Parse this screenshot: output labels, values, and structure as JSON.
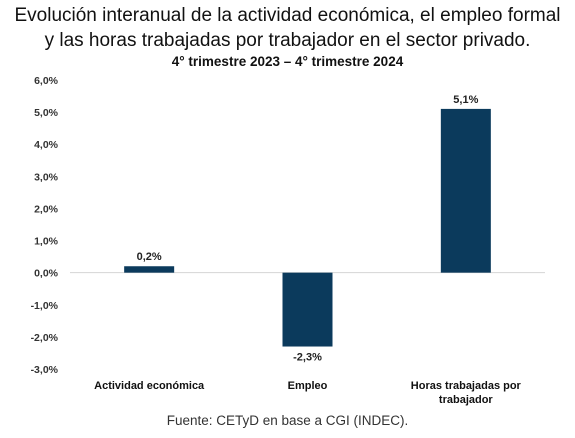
{
  "chart_data": {
    "type": "bar",
    "title": "Evolución interanual de la actividad económica, el empleo formal",
    "title_line2": "y las horas trabajadas por trabajador en el sector privado.",
    "subtitle": "4° trimestre 2023 – 4° trimestre 2024",
    "categories": [
      "Actividad económica",
      "Empleo",
      "Horas trabajadas por trabajador"
    ],
    "category_lines": [
      [
        "Actividad económica"
      ],
      [
        "Empleo"
      ],
      [
        "Horas trabajadas por",
        "trabajador"
      ]
    ],
    "values": [
      0.2,
      -2.3,
      5.1
    ],
    "data_labels": [
      "0,2%",
      "-2,3%",
      "5,1%"
    ],
    "ylim": [
      -3.0,
      6.0
    ],
    "yticks": [
      6,
      5,
      4,
      3,
      2,
      1,
      0,
      -1,
      -2,
      -3
    ],
    "ytick_labels": [
      "6,0%",
      "5,0%",
      "4,0%",
      "3,0%",
      "2,0%",
      "1,0%",
      "0,0%",
      "-1,0%",
      "-2,0%",
      "-3,0%"
    ],
    "bar_color": "#0b3a5c",
    "grid": false,
    "source": "Fuente: CETyD en base a CGI (INDEC)."
  }
}
